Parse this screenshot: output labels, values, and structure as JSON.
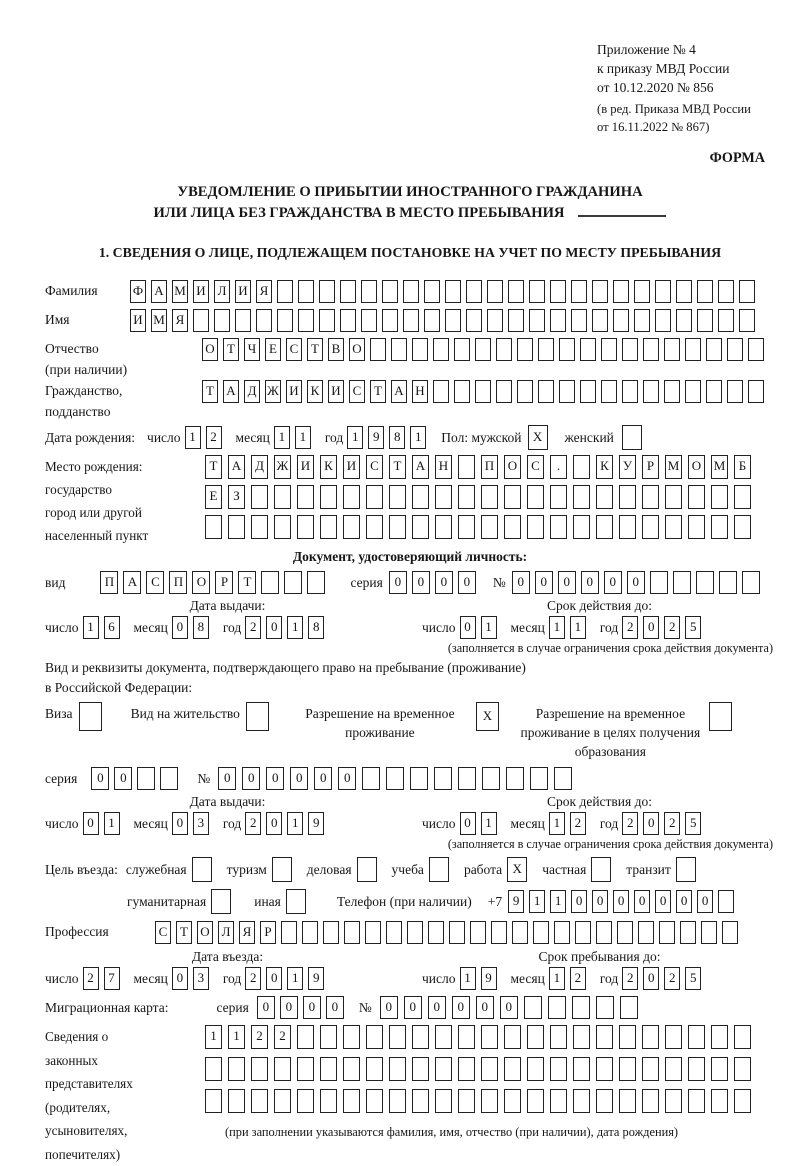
{
  "header": {
    "lines": [
      "Приложение № 4",
      "к приказу МВД России",
      "от 10.12.2020 № 856"
    ],
    "sub_lines": [
      "(в ред. Приказа МВД России",
      "от 16.11.2022 № 867)"
    ],
    "form_label": "ФОРМА"
  },
  "title": {
    "line1": "УВЕДОМЛЕНИЕ О ПРИБЫТИИ ИНОСТРАННОГО ГРАЖДАНИНА",
    "line2": "ИЛИ ЛИЦА БЕЗ ГРАЖДАНСТВА В МЕСТО ПРЕБЫВАНИЯ"
  },
  "section1_heading": "1. СВЕДЕНИЯ О ЛИЦЕ, ПОДЛЕЖАЩЕМ ПОСТАНОВКЕ НА УЧЕТ ПО МЕСТУ ПРЕБЫВАНИЯ",
  "labels": {
    "day": "число",
    "month": "месяц",
    "year": "год",
    "seriya": "серия",
    "num": "№",
    "issue_date": "Дата выдачи:",
    "expiry_date": "Срок действия до:",
    "entry_date": "Дата въезда:",
    "stay_until": "Срок пребывания до:",
    "expiry_note": "(заполняется в случае ограничения срока действия документа)"
  },
  "fields": {
    "surname": {
      "label": "Фамилия",
      "cells": {
        "text": "ФАМИЛИЯ",
        "len": 30
      }
    },
    "name": {
      "label": "Имя",
      "cells": {
        "text": "ИМЯ",
        "len": 30
      }
    },
    "patronymic": {
      "label": "Отчество",
      "label2": "(при наличии)",
      "cells": {
        "text": "ОТЧЕСТВО",
        "len": 27
      }
    },
    "citizenship": {
      "label": "Гражданство,",
      "label2": "подданство",
      "cells": {
        "text": "ТАДЖИКИСТАН",
        "len": 27
      }
    },
    "birth_date": {
      "label": "Дата рождения:",
      "day": "12",
      "month": "11",
      "year": "1981"
    },
    "sex": {
      "label": "Пол: мужской",
      "male": {
        "text": "X",
        "len": 1
      },
      "female_label": "женский",
      "female": {
        "text": "",
        "len": 1
      }
    },
    "birth_place": {
      "label_lines": [
        "Место рождения:",
        "государство",
        "город или другой",
        "населенный пункт"
      ],
      "rows": [
        {
          "text": "ТАДЖИКИСТАН ПОС. КУРМОМБ",
          "len": 24
        },
        {
          "text": "ЕЗ",
          "len": 24
        },
        {
          "text": "",
          "len": 24
        }
      ]
    },
    "identity_doc": {
      "heading": "Документ, удостоверяющий личность:",
      "type_label": "вид",
      "type": {
        "text": "ПАСПОРТ",
        "len": 10
      },
      "seriya": {
        "text": "0000",
        "len": 4
      },
      "num": {
        "text": "000000",
        "len": 11
      },
      "issue": {
        "day": "16",
        "month": "08",
        "year": "2018"
      },
      "expiry": {
        "day": "01",
        "month": "11",
        "year": "2025"
      }
    },
    "residence_doc": {
      "line1": "Вид и реквизиты документа, подтверждающего право на пребывание (проживание)",
      "line2": "в Российской Федерации:",
      "options": [
        {
          "label": "Виза",
          "value": {
            "text": "",
            "len": 1
          }
        },
        {
          "label": "Вид на жительство",
          "value": {
            "text": "",
            "len": 1
          }
        },
        {
          "label": "Разрешение на временное проживание",
          "value": {
            "text": "X",
            "len": 1
          }
        },
        {
          "label": "Разрешение на временное проживание в целях получения образования",
          "value": {
            "text": "",
            "len": 1
          }
        }
      ],
      "seriya": {
        "text": "00",
        "len": 4
      },
      "num": {
        "text": "000000",
        "len": 15
      },
      "issue": {
        "day": "01",
        "month": "03",
        "year": "2019"
      },
      "expiry": {
        "day": "01",
        "month": "12",
        "year": "2025"
      }
    },
    "purpose": {
      "label": "Цель въезда:",
      "options": [
        {
          "label": "служебная",
          "value": {
            "text": "",
            "len": 1
          }
        },
        {
          "label": "туризм",
          "value": {
            "text": "",
            "len": 1
          }
        },
        {
          "label": "деловая",
          "value": {
            "text": "",
            "len": 1
          }
        },
        {
          "label": "учеба",
          "value": {
            "text": "",
            "len": 1
          }
        },
        {
          "label": "работа",
          "value": {
            "text": "X",
            "len": 1
          }
        },
        {
          "label": "частная",
          "value": {
            "text": "",
            "len": 1
          }
        },
        {
          "label": "транзит",
          "value": {
            "text": "",
            "len": 1
          }
        }
      ],
      "options2": [
        {
          "label": "гуманитарная",
          "value": {
            "text": "",
            "len": 1
          }
        },
        {
          "label": "иная",
          "value": {
            "text": "",
            "len": 1
          }
        }
      ]
    },
    "phone": {
      "label": "Телефон (при наличии)",
      "prefix": "+7",
      "cells": {
        "text": "9110000000",
        "len": 11
      }
    },
    "profession": {
      "label": "Профессия",
      "cells": {
        "text": "СТОЛЯР",
        "len": 28
      }
    },
    "entry": {
      "issue": {
        "day": "27",
        "month": "03",
        "year": "2019"
      },
      "expiry": {
        "day": "19",
        "month": "12",
        "year": "2025"
      }
    },
    "migration_card": {
      "label": "Миграционная карта:",
      "seriya": {
        "text": "0000",
        "len": 4
      },
      "num": {
        "text": "000000",
        "len": 11
      }
    },
    "representatives": {
      "label_lines": [
        "Сведения о",
        "законных",
        "представителях",
        "(родителях,",
        "усыновителях,",
        "попечителях)"
      ],
      "rows": [
        {
          "text": "1122",
          "len": 24
        },
        {
          "text": "",
          "len": 24
        },
        {
          "text": "",
          "len": 24
        }
      ],
      "note": "(при заполнении указываются фамилия, имя, отчество (при наличии), дата рождения)"
    }
  }
}
